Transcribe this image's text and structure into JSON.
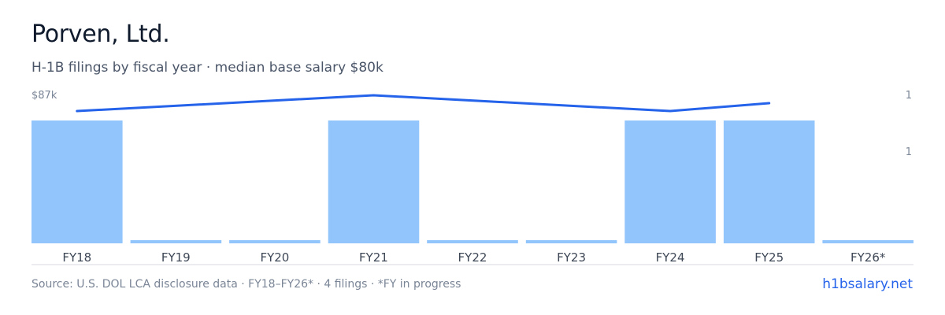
{
  "header": {
    "title": "Porven, Ltd.",
    "subtitle": "H-1B filings by fiscal year · median base salary $80k"
  },
  "footer": {
    "source": "Source: U.S. DOL LCA disclosure data · FY18–FY26* · 4 filings · *FY in progress",
    "brand": "h1bsalary.net"
  },
  "colors": {
    "bar": "#93c5fd",
    "line": "#2563eb",
    "axis": "#d5d9e0"
  },
  "chart_data": {
    "type": "bar",
    "categories": [
      "FY18",
      "FY19",
      "FY20",
      "FY21",
      "FY22",
      "FY23",
      "FY24",
      "FY25",
      "FY26*"
    ],
    "series": [
      {
        "type": "bar",
        "axis": "right",
        "values": [
          1,
          0,
          0,
          1,
          0,
          0,
          1,
          1,
          0
        ]
      },
      {
        "type": "line",
        "axis": "left",
        "values": [
          84,
          null,
          null,
          87,
          null,
          null,
          84,
          85.5,
          null
        ]
      }
    ],
    "left_axis": {
      "label": "$87k",
      "value": 87
    },
    "right_axis": {
      "labels": [
        "1",
        "1"
      ]
    }
  }
}
